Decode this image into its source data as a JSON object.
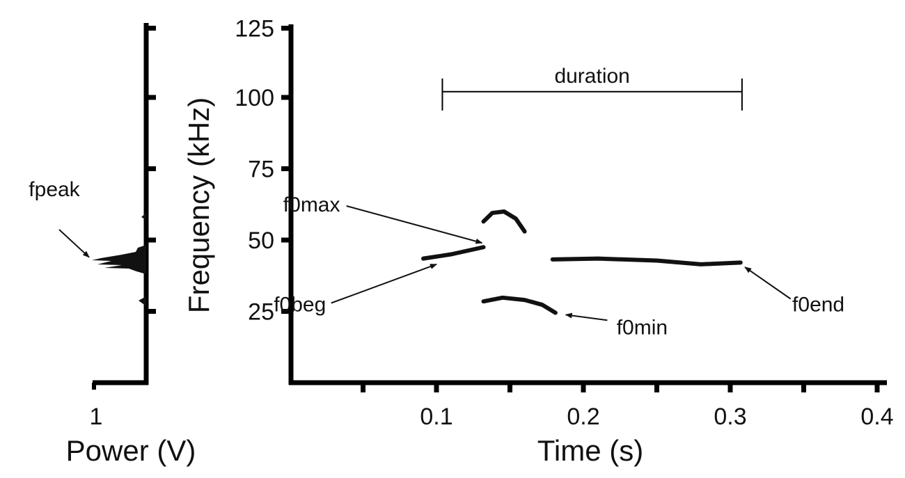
{
  "chart_data": {
    "type": "line",
    "title": "",
    "panels": {
      "power": {
        "xlabel": "Power (V)",
        "xticks": [
          {
            "value": 1,
            "label": "1"
          }
        ],
        "annotation": {
          "label": "fpeak",
          "freq": 43
        }
      },
      "spectrogram": {
        "xlabel": "Time (s)",
        "ylabel": "Frequency (kHz)",
        "xlim": [
          0,
          0.42
        ],
        "ylim": [
          0,
          125
        ],
        "xticks": [
          {
            "value": 0.05,
            "label": ""
          },
          {
            "value": 0.1,
            "label": "0.1"
          },
          {
            "value": 0.15,
            "label": ""
          },
          {
            "value": 0.2,
            "label": "0.2"
          },
          {
            "value": 0.25,
            "label": ""
          },
          {
            "value": 0.3,
            "label": "0.3"
          },
          {
            "value": 0.35,
            "label": ""
          },
          {
            "value": 0.4,
            "label": "0.4"
          }
        ],
        "yticks": [
          {
            "value": 25,
            "label": "25"
          },
          {
            "value": 50,
            "label": "50"
          },
          {
            "value": 75,
            "label": "75"
          },
          {
            "value": 100,
            "label": "100"
          },
          {
            "value": 125,
            "label": "125"
          }
        ],
        "series": [
          {
            "name": "segment-1",
            "x": [
              0.091,
              0.11,
              0.132
            ],
            "y": [
              43.5,
              45,
              47.5
            ]
          },
          {
            "name": "upper-harmonic",
            "x": [
              0.132,
              0.138,
              0.146,
              0.154,
              0.16
            ],
            "y": [
              56.5,
              59.5,
              60,
              57.5,
              53
            ]
          },
          {
            "name": "lower-segment",
            "x": [
              0.132,
              0.145,
              0.16,
              0.172,
              0.181
            ],
            "y": [
              28.5,
              29.8,
              29,
              27.3,
              24.5
            ]
          },
          {
            "name": "segment-2",
            "x": [
              0.179,
              0.21,
              0.25,
              0.28,
              0.307
            ],
            "y": [
              43.2,
              43.5,
              42.8,
              41.5,
              42.1
            ]
          }
        ],
        "duration": {
          "label": "duration",
          "start": 0.104,
          "end": 0.308,
          "freq": 102
        },
        "annotations": [
          {
            "label": "f0max",
            "text_t": 0.015,
            "text_f": 60,
            "t": 0.131,
            "f": 49
          },
          {
            "label": "f0beg",
            "text_t": 0.007,
            "text_f": 25,
            "t": 0.1,
            "f": 41.5
          },
          {
            "label": "f0min",
            "text_t": 0.24,
            "text_f": 17,
            "t": 0.188,
            "f": 23.8
          },
          {
            "label": "f0end",
            "text_t": 0.36,
            "text_f": 25,
            "t": 0.31,
            "f": 40.5
          }
        ]
      }
    }
  }
}
